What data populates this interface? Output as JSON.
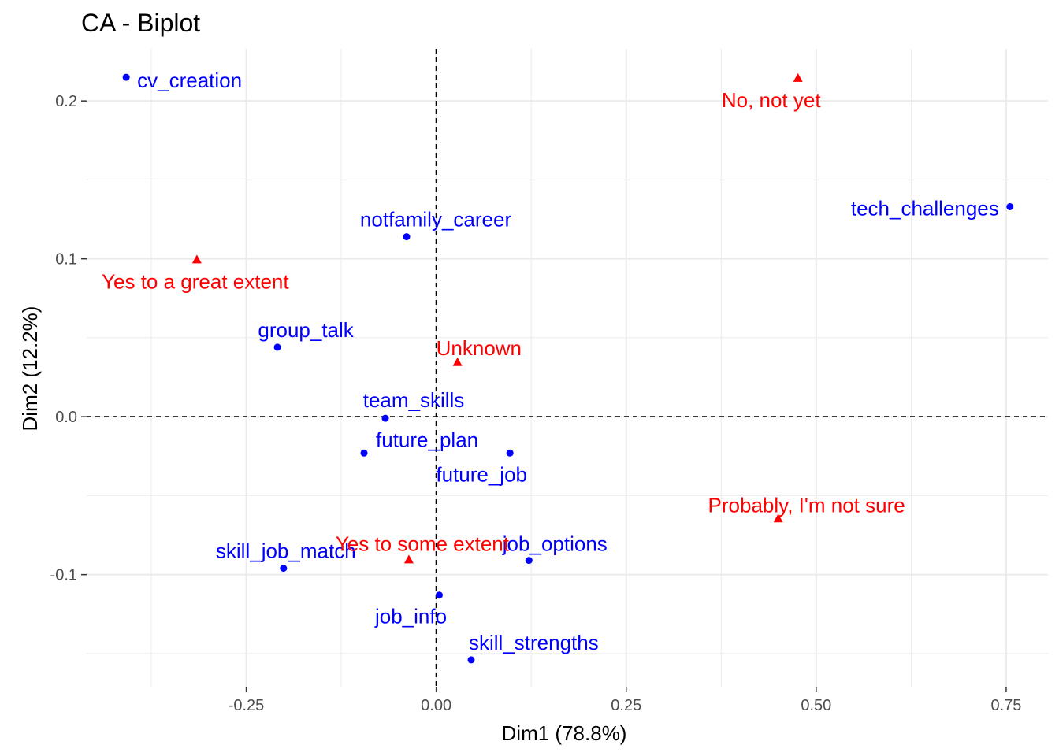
{
  "chart_data": {
    "type": "scatter",
    "title": "CA - Biplot",
    "xlabel": "Dim1 (78.8%)",
    "ylabel": "Dim2 (12.2%)",
    "xlim": [
      -0.46,
      0.805
    ],
    "ylim": [
      -0.171,
      0.233
    ],
    "x_ticks": [
      -0.25,
      0.0,
      0.25,
      0.5,
      0.75
    ],
    "x_tick_labels": [
      "-0.25",
      "0.00",
      "0.25",
      "0.50",
      "0.75"
    ],
    "y_ticks": [
      -0.1,
      0.0,
      0.1,
      0.2
    ],
    "y_tick_labels": [
      "-0.1",
      "0.0",
      "0.1",
      "0.2"
    ],
    "grid": true,
    "reference_lines": {
      "x": 0,
      "y": 0,
      "style": "dashed"
    },
    "colors": {
      "rows": "#0000ff",
      "cols": "#ff0000",
      "grid": "#ebebeb",
      "ref": "#000000",
      "tick": "#333333"
    },
    "series": [
      {
        "marker": "circle",
        "color": "#0000ff",
        "points": [
          {
            "label": "cv_creation",
            "x": -0.408,
            "y": 0.215
          },
          {
            "label": "tech_challenges",
            "x": 0.755,
            "y": 0.133
          },
          {
            "label": "notfamily_career",
            "x": -0.039,
            "y": 0.114
          },
          {
            "label": "group_talk",
            "x": -0.209,
            "y": 0.044
          },
          {
            "label": "team_skills",
            "x": -0.067,
            "y": -0.001
          },
          {
            "label": "future_plan",
            "x": -0.095,
            "y": -0.023
          },
          {
            "label": "future_job",
            "x": 0.097,
            "y": -0.023
          },
          {
            "label": "job_options",
            "x": 0.122,
            "y": -0.091
          },
          {
            "label": "skill_job_match",
            "x": -0.201,
            "y": -0.096
          },
          {
            "label": "job_info",
            "x": 0.004,
            "y": -0.113
          },
          {
            "label": "skill_strengths",
            "x": 0.046,
            "y": -0.154
          }
        ]
      },
      {
        "marker": "triangle",
        "color": "#ff0000",
        "points": [
          {
            "label": "No, not yet",
            "x": 0.476,
            "y": 0.214
          },
          {
            "label": "Yes to a great extent",
            "x": -0.315,
            "y": 0.099
          },
          {
            "label": "Unknown",
            "x": 0.028,
            "y": 0.034
          },
          {
            "label": "Probably, I'm not sure",
            "x": 0.45,
            "y": -0.065
          },
          {
            "label": "Yes to some extent",
            "x": -0.036,
            "y": -0.091
          }
        ]
      }
    ]
  }
}
